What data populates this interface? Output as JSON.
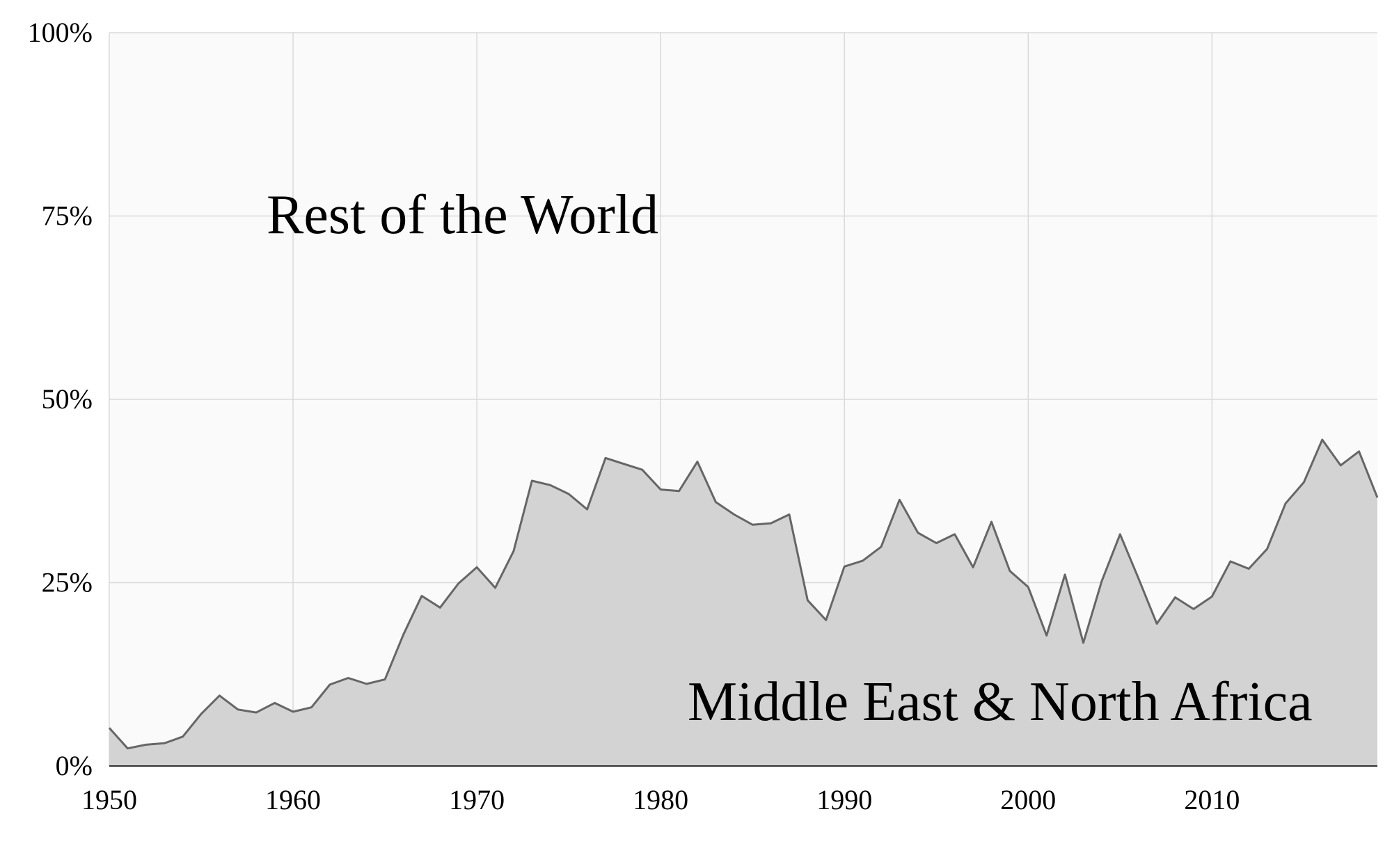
{
  "chart_data": {
    "type": "area",
    "stacked_percent": true,
    "x": [
      1950,
      1951,
      1952,
      1953,
      1954,
      1955,
      1956,
      1957,
      1958,
      1959,
      1960,
      1961,
      1962,
      1963,
      1964,
      1965,
      1966,
      1967,
      1968,
      1969,
      1970,
      1971,
      1972,
      1973,
      1974,
      1975,
      1976,
      1977,
      1978,
      1979,
      1980,
      1981,
      1982,
      1983,
      1984,
      1985,
      1986,
      1987,
      1988,
      1989,
      1990,
      1991,
      1992,
      1993,
      1994,
      1995,
      1996,
      1997,
      1998,
      1999,
      2000,
      2001,
      2002,
      2003,
      2004,
      2005,
      2006,
      2007,
      2008,
      2009,
      2010,
      2011,
      2012,
      2013,
      2014,
      2015,
      2016,
      2017,
      2018,
      2019
    ],
    "series": [
      {
        "name": "Middle East & North Africa",
        "values": [
          5.2,
          2.4,
          2.9,
          3.1,
          4.0,
          7.1,
          9.6,
          7.7,
          7.3,
          8.6,
          7.4,
          8.0,
          11.1,
          12.0,
          11.2,
          11.8,
          17.9,
          23.2,
          21.6,
          24.9,
          27.1,
          24.3,
          29.3,
          38.9,
          38.3,
          37.1,
          35.0,
          42.0,
          41.2,
          40.4,
          37.7,
          37.5,
          41.5,
          36.0,
          34.3,
          32.9,
          33.1,
          34.3,
          22.6,
          19.9,
          27.2,
          28.0,
          29.9,
          36.3,
          31.8,
          30.4,
          31.6,
          27.1,
          33.3,
          26.6,
          24.4,
          17.8,
          26.1,
          16.8,
          25.2,
          31.6,
          25.6,
          19.4,
          23.0,
          21.4,
          23.1,
          27.9,
          26.9,
          29.6,
          35.8,
          38.7,
          44.5,
          41.0,
          42.9,
          36.6
        ],
        "color": "#d3d3d3",
        "line_color": "#666666"
      },
      {
        "name": "Rest of the World",
        "color": "#fafafa"
      }
    ],
    "x_ticks": [
      "1950",
      "1960",
      "1970",
      "1980",
      "1990",
      "2000",
      "2010"
    ],
    "y_ticks": [
      "0%",
      "25%",
      "50%",
      "75%",
      "100%"
    ],
    "xlim": [
      1950,
      2019
    ],
    "ylim": [
      0,
      100
    ],
    "grid": true,
    "title": "",
    "xlabel": "",
    "ylabel": ""
  }
}
